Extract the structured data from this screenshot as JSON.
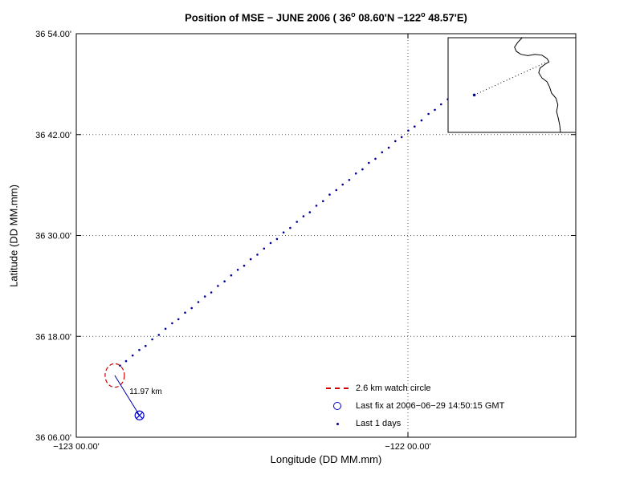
{
  "chart_data": {
    "type": "scatter",
    "title": "Position of MSE − JUNE 2006 ( 36° 08.60'N −122° 48.57'E)",
    "title_segments": [
      {
        "t": "Position of MSE − JUNE 2006 ( 36",
        "sup": false
      },
      {
        "t": "o",
        "sup": true
      },
      {
        "t": " 08.60'N −122",
        "sup": false
      },
      {
        "t": "o",
        "sup": true
      },
      {
        "t": " 48.57'E)",
        "sup": false
      }
    ],
    "xlabel": "Longitude (DD MM.mm)",
    "ylabel": "Latitude (DD MM.mm)",
    "xlim": [
      -123.0,
      -121.494
    ],
    "ylim": [
      36.1,
      36.9
    ],
    "grid": "dotted",
    "x_ticks": [
      {
        "value": -123.0,
        "label": "−123 00.00'"
      },
      {
        "value": -122.0,
        "label": "−122 00.00'"
      }
    ],
    "y_ticks": [
      {
        "value": 36.9,
        "label": "36 54.00'"
      },
      {
        "value": 36.7,
        "label": "36 42.00'"
      },
      {
        "value": 36.5,
        "label": "36 30.00'"
      },
      {
        "value": 36.3,
        "label": "36 18.00'"
      },
      {
        "value": 36.1,
        "label": "36 06.00'"
      }
    ],
    "colors": {
      "track": "#000099",
      "watch_circle": "#cc0000",
      "last_fix": "#0000cc",
      "drift_line": "#0000aa",
      "coast": "#000000",
      "grid": "#555555"
    },
    "watch_circle": {
      "center": [
        -122.884,
        36.2225
      ],
      "radius_km": 2.6,
      "label": "2.6 km watch circle"
    },
    "last_fix": {
      "lon": -122.8095,
      "lat": 36.1433,
      "label": "Last fix at 2006−06−29 14:50:15 GMT"
    },
    "drift": {
      "from": [
        -122.884,
        36.2225
      ],
      "to": [
        -122.8095,
        36.1433
      ],
      "label": "11.97 km"
    },
    "track": {
      "label": "Last 1 days",
      "points": [
        [
          -121.88,
          36.77
        ],
        [
          -121.9,
          36.76
        ],
        [
          -121.919,
          36.749
        ],
        [
          -121.938,
          36.741
        ],
        [
          -121.959,
          36.728
        ],
        [
          -121.98,
          36.716
        ],
        [
          -121.999,
          36.708
        ],
        [
          -122.019,
          36.695
        ],
        [
          -122.038,
          36.687
        ],
        [
          -122.058,
          36.674
        ],
        [
          -122.078,
          36.665
        ],
        [
          -122.098,
          36.652
        ],
        [
          -122.118,
          36.644
        ],
        [
          -122.137,
          36.631
        ],
        [
          -122.157,
          36.623
        ],
        [
          -122.177,
          36.61
        ],
        [
          -122.197,
          36.601
        ],
        [
          -122.216,
          36.59
        ],
        [
          -122.236,
          36.581
        ],
        [
          -122.256,
          36.568
        ],
        [
          -122.276,
          36.559
        ],
        [
          -122.296,
          36.546
        ],
        [
          -122.315,
          36.538
        ],
        [
          -122.335,
          36.527
        ],
        [
          -122.355,
          36.515
        ],
        [
          -122.375,
          36.506
        ],
        [
          -122.395,
          36.493
        ],
        [
          -122.414,
          36.485
        ],
        [
          -122.434,
          36.474
        ],
        [
          -122.454,
          36.462
        ],
        [
          -122.474,
          36.453
        ],
        [
          -122.494,
          36.44
        ],
        [
          -122.513,
          36.432
        ],
        [
          -122.533,
          36.421
        ],
        [
          -122.553,
          36.409
        ],
        [
          -122.573,
          36.4
        ],
        [
          -122.593,
          36.387
        ],
        [
          -122.612,
          36.379
        ],
        [
          -122.632,
          36.368
        ],
        [
          -122.652,
          36.356
        ],
        [
          -122.672,
          36.347
        ],
        [
          -122.692,
          36.334
        ],
        [
          -122.711,
          36.326
        ],
        [
          -122.731,
          36.315
        ],
        [
          -122.751,
          36.303
        ],
        [
          -122.771,
          36.294
        ],
        [
          -122.791,
          36.281
        ],
        [
          -122.81,
          36.273
        ],
        [
          -122.83,
          36.262
        ],
        [
          -122.85,
          36.251
        ],
        [
          -122.868,
          36.242
        ]
      ]
    },
    "legend": {
      "position": "bottom-right",
      "entries": [
        {
          "marker": "dashed-line",
          "icon": "watch-circle-swatch",
          "color": "#cc0000",
          "label": "2.6 km watch circle"
        },
        {
          "marker": "circle",
          "icon": "last-fix-marker-icon",
          "color": "#0000cc",
          "label": "Last fix at 2006−06−29 14:50:15 GMT"
        },
        {
          "marker": "dot",
          "icon": "track-dot-icon",
          "color": "#000099",
          "label": "Last 1 days"
        }
      ]
    },
    "inset": {
      "coast_outline": [
        [
          0.58,
          0.0
        ],
        [
          0.545,
          0.05
        ],
        [
          0.52,
          0.1
        ],
        [
          0.535,
          0.145
        ],
        [
          0.57,
          0.175
        ],
        [
          0.625,
          0.19
        ],
        [
          0.68,
          0.175
        ],
        [
          0.735,
          0.185
        ],
        [
          0.775,
          0.22
        ],
        [
          0.79,
          0.255
        ],
        [
          0.755,
          0.285
        ],
        [
          0.72,
          0.32
        ],
        [
          0.71,
          0.37
        ],
        [
          0.735,
          0.425
        ],
        [
          0.775,
          0.465
        ],
        [
          0.795,
          0.52
        ],
        [
          0.81,
          0.585
        ],
        [
          0.845,
          0.64
        ],
        [
          0.86,
          0.71
        ],
        [
          0.85,
          0.78
        ],
        [
          0.865,
          0.86
        ],
        [
          0.875,
          0.93
        ],
        [
          0.88,
          1.0
        ]
      ],
      "track_from": [
        0.205,
        0.605
      ],
      "track_to": [
        0.775,
        0.255
      ],
      "buoy_point": [
        0.205,
        0.605
      ]
    }
  }
}
